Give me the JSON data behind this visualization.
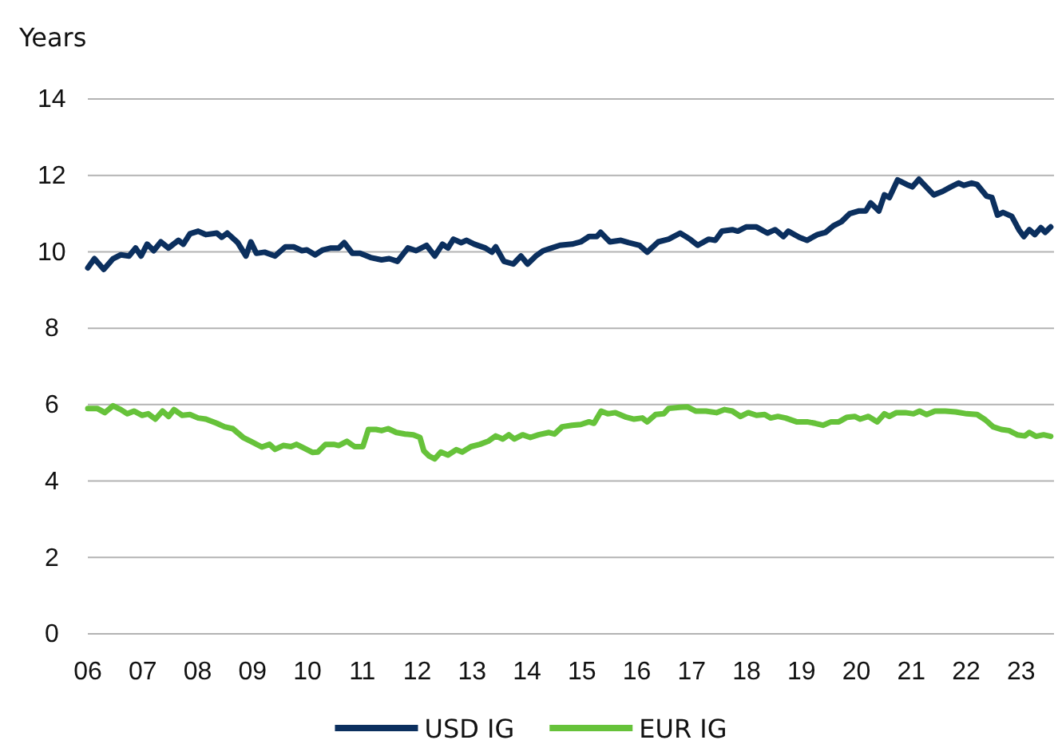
{
  "chart_data": {
    "type": "line",
    "ylabel": "Years",
    "xlim": [
      2006,
      2023.6
    ],
    "ylim": [
      0,
      14
    ],
    "yticks": [
      0,
      2,
      4,
      6,
      8,
      10,
      12,
      14
    ],
    "xticks": [
      {
        "value": 2006,
        "label": "06"
      },
      {
        "value": 2007,
        "label": "07"
      },
      {
        "value": 2008,
        "label": "08"
      },
      {
        "value": 2009,
        "label": "09"
      },
      {
        "value": 2010,
        "label": "10"
      },
      {
        "value": 2011,
        "label": "11"
      },
      {
        "value": 2012,
        "label": "12"
      },
      {
        "value": 2013,
        "label": "13"
      },
      {
        "value": 2014,
        "label": "14"
      },
      {
        "value": 2015,
        "label": "15"
      },
      {
        "value": 2016,
        "label": "16"
      },
      {
        "value": 2017,
        "label": "17"
      },
      {
        "value": 2018,
        "label": "18"
      },
      {
        "value": 2019,
        "label": "19"
      },
      {
        "value": 2020,
        "label": "20"
      },
      {
        "value": 2021,
        "label": "21"
      },
      {
        "value": 2022,
        "label": "22"
      },
      {
        "value": 2023,
        "label": "23"
      }
    ],
    "grid": "y",
    "legend": "bottom",
    "marker": "none",
    "line_style": "solid",
    "series": [
      {
        "name": "USD IG",
        "color": "#0b2f5e",
        "x": [
          2006.0,
          2006.12,
          2006.29,
          2006.46,
          2006.6,
          2006.75,
          2006.87,
          2006.97,
          2007.08,
          2007.2,
          2007.33,
          2007.47,
          2007.65,
          2007.74,
          2007.86,
          2008.01,
          2008.15,
          2008.35,
          2008.44,
          2008.54,
          2008.73,
          2008.88,
          2008.97,
          2009.07,
          2009.22,
          2009.41,
          2009.6,
          2009.75,
          2009.9,
          2009.99,
          2010.14,
          2010.28,
          2010.43,
          2010.57,
          2010.67,
          2010.82,
          2010.96,
          2011.15,
          2011.35,
          2011.49,
          2011.64,
          2011.83,
          2011.98,
          2012.17,
          2012.32,
          2012.46,
          2012.56,
          2012.66,
          2012.8,
          2012.9,
          2013.04,
          2013.24,
          2013.36,
          2013.43,
          2013.58,
          2013.75,
          2013.89,
          2014.01,
          2014.16,
          2014.3,
          2014.45,
          2014.6,
          2014.82,
          2014.98,
          2015.13,
          2015.27,
          2015.34,
          2015.51,
          2015.71,
          2015.85,
          2016.05,
          2016.19,
          2016.39,
          2016.58,
          2016.79,
          2016.97,
          2017.11,
          2017.31,
          2017.43,
          2017.55,
          2017.74,
          2017.84,
          2017.99,
          2018.18,
          2018.38,
          2018.52,
          2018.67,
          2018.76,
          2018.96,
          2019.1,
          2019.29,
          2019.44,
          2019.58,
          2019.73,
          2019.88,
          2020.05,
          2020.17,
          2020.26,
          2020.41,
          2020.51,
          2020.6,
          2020.75,
          2020.92,
          2021.02,
          2021.14,
          2021.23,
          2021.41,
          2021.57,
          2021.72,
          2021.86,
          2021.96,
          2022.1,
          2022.2,
          2022.37,
          2022.47,
          2022.57,
          2022.67,
          2022.83,
          2022.96,
          2023.05,
          2023.15,
          2023.25,
          2023.36,
          2023.44,
          2023.54
        ],
        "values": [
          9.58,
          9.82,
          9.54,
          9.82,
          9.92,
          9.89,
          10.1,
          9.89,
          10.2,
          10.03,
          10.26,
          10.1,
          10.3,
          10.2,
          10.47,
          10.54,
          10.45,
          10.49,
          10.38,
          10.49,
          10.24,
          9.89,
          10.26,
          9.96,
          9.99,
          9.89,
          10.13,
          10.13,
          10.03,
          10.05,
          9.92,
          10.05,
          10.1,
          10.1,
          10.24,
          9.96,
          9.96,
          9.85,
          9.79,
          9.82,
          9.75,
          10.1,
          10.03,
          10.17,
          9.89,
          10.2,
          10.1,
          10.33,
          10.24,
          10.3,
          10.2,
          10.1,
          9.99,
          10.13,
          9.75,
          9.68,
          9.89,
          9.68,
          9.89,
          10.03,
          10.1,
          10.17,
          10.2,
          10.26,
          10.4,
          10.4,
          10.51,
          10.26,
          10.3,
          10.24,
          10.17,
          9.99,
          10.26,
          10.33,
          10.49,
          10.33,
          10.17,
          10.33,
          10.3,
          10.54,
          10.58,
          10.54,
          10.65,
          10.65,
          10.49,
          10.58,
          10.4,
          10.54,
          10.38,
          10.3,
          10.45,
          10.51,
          10.68,
          10.79,
          11.0,
          11.07,
          11.07,
          11.28,
          11.07,
          11.49,
          11.42,
          11.88,
          11.76,
          11.7,
          11.9,
          11.76,
          11.49,
          11.58,
          11.7,
          11.8,
          11.74,
          11.8,
          11.76,
          11.46,
          11.42,
          10.96,
          11.03,
          10.93,
          10.58,
          10.4,
          10.58,
          10.45,
          10.63,
          10.51,
          10.65
        ]
      },
      {
        "name": "EUR IG",
        "color": "#66c23a",
        "x": [
          2006.0,
          2006.17,
          2006.31,
          2006.46,
          2006.6,
          2006.72,
          2006.84,
          2006.99,
          2007.1,
          2007.23,
          2007.36,
          2007.47,
          2007.57,
          2007.72,
          2007.86,
          2008.01,
          2008.15,
          2008.35,
          2008.49,
          2008.64,
          2008.83,
          2008.97,
          2009.17,
          2009.31,
          2009.41,
          2009.56,
          2009.7,
          2009.8,
          2009.94,
          2010.09,
          2010.19,
          2010.33,
          2010.48,
          2010.57,
          2010.72,
          2010.86,
          2011.01,
          2011.11,
          2011.25,
          2011.35,
          2011.47,
          2011.62,
          2011.78,
          2011.93,
          2012.05,
          2012.12,
          2012.22,
          2012.32,
          2012.43,
          2012.56,
          2012.71,
          2012.82,
          2012.98,
          2013.14,
          2013.29,
          2013.43,
          2013.56,
          2013.67,
          2013.77,
          2013.92,
          2014.06,
          2014.21,
          2014.4,
          2014.5,
          2014.64,
          2014.82,
          2014.98,
          2015.13,
          2015.22,
          2015.35,
          2015.47,
          2015.61,
          2015.81,
          2015.95,
          2016.1,
          2016.19,
          2016.34,
          2016.49,
          2016.58,
          2016.78,
          2016.92,
          2017.07,
          2017.26,
          2017.45,
          2017.6,
          2017.74,
          2017.89,
          2018.03,
          2018.18,
          2018.33,
          2018.44,
          2018.57,
          2018.71,
          2018.91,
          2019.1,
          2019.25,
          2019.39,
          2019.54,
          2019.68,
          2019.83,
          2019.97,
          2020.07,
          2020.22,
          2020.38,
          2020.51,
          2020.6,
          2020.73,
          2020.89,
          2021.04,
          2021.15,
          2021.28,
          2021.43,
          2021.62,
          2021.81,
          2022.01,
          2022.2,
          2022.35,
          2022.49,
          2022.64,
          2022.78,
          2022.93,
          2023.07,
          2023.15,
          2023.27,
          2023.41,
          2023.54
        ],
        "values": [
          5.9,
          5.9,
          5.79,
          5.97,
          5.87,
          5.76,
          5.83,
          5.72,
          5.76,
          5.62,
          5.83,
          5.69,
          5.87,
          5.72,
          5.74,
          5.65,
          5.62,
          5.51,
          5.42,
          5.37,
          5.14,
          5.04,
          4.89,
          4.96,
          4.83,
          4.93,
          4.9,
          4.96,
          4.86,
          4.75,
          4.76,
          4.96,
          4.96,
          4.93,
          5.04,
          4.9,
          4.9,
          5.35,
          5.35,
          5.32,
          5.37,
          5.27,
          5.23,
          5.21,
          5.14,
          4.79,
          4.65,
          4.58,
          4.76,
          4.68,
          4.82,
          4.76,
          4.9,
          4.96,
          5.04,
          5.18,
          5.1,
          5.21,
          5.1,
          5.21,
          5.14,
          5.21,
          5.27,
          5.23,
          5.42,
          5.46,
          5.48,
          5.55,
          5.51,
          5.83,
          5.76,
          5.79,
          5.67,
          5.62,
          5.65,
          5.55,
          5.74,
          5.76,
          5.9,
          5.93,
          5.94,
          5.83,
          5.83,
          5.79,
          5.87,
          5.83,
          5.69,
          5.79,
          5.72,
          5.74,
          5.65,
          5.69,
          5.65,
          5.55,
          5.55,
          5.51,
          5.46,
          5.55,
          5.55,
          5.67,
          5.69,
          5.62,
          5.69,
          5.55,
          5.76,
          5.69,
          5.79,
          5.79,
          5.76,
          5.83,
          5.74,
          5.83,
          5.83,
          5.81,
          5.76,
          5.74,
          5.6,
          5.42,
          5.35,
          5.32,
          5.21,
          5.18,
          5.27,
          5.17,
          5.21,
          5.17
        ]
      }
    ]
  }
}
